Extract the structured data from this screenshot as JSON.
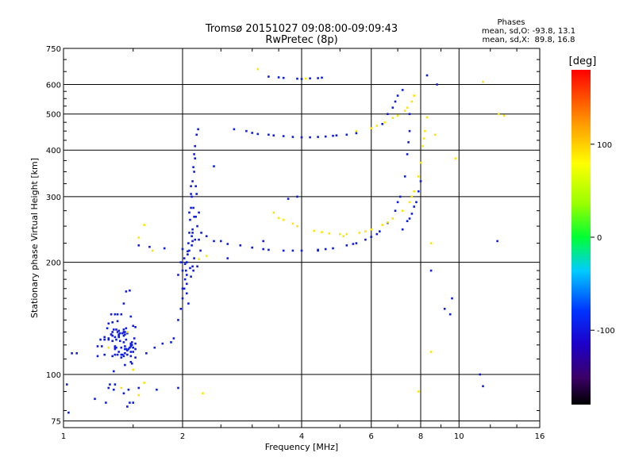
{
  "chart_data": {
    "type": "scatter",
    "title": "Tromsø 20151027 09:08:00-09:09:43",
    "subtitle": "RwPretec (8p)",
    "xlabel": "Frequency [MHz]",
    "ylabel": "Stationary phase Virtual Height [km]",
    "x_scale": "log",
    "y_scale": "log",
    "xlim": [
      1,
      16
    ],
    "ylim": [
      72,
      750
    ],
    "x_ticks": [
      1,
      2,
      4,
      6,
      8,
      10,
      16
    ],
    "y_ticks": [
      75,
      100,
      200,
      300,
      400,
      500,
      600,
      750
    ],
    "grid": true,
    "phase_box": {
      "heading": "Phases",
      "line_o": "mean, sd,O: -93.8, 13.1",
      "line_x": "mean, sd,X:  89.8, 16.8"
    },
    "colorbar": {
      "label": "[deg]",
      "range": [
        -180,
        180
      ],
      "ticks": [
        -100,
        0,
        100
      ],
      "colormap": "rainbow"
    },
    "series": [
      {
        "phase": -95,
        "points": [
          [
            1.2,
            86
          ],
          [
            1.28,
            84
          ],
          [
            1.3,
            92
          ],
          [
            1.22,
            112
          ],
          [
            1.25,
            119
          ],
          [
            1.3,
            124
          ],
          [
            1.3,
            137
          ],
          [
            1.38,
            128
          ],
          [
            1.34,
            132
          ],
          [
            1.27,
            126
          ],
          [
            1.32,
            128
          ],
          [
            1.35,
            126
          ],
          [
            1.37,
            139
          ],
          [
            1.32,
            145
          ],
          [
            1.37,
            145
          ],
          [
            1.4,
            145
          ],
          [
            1.38,
            131
          ],
          [
            1.45,
            129
          ],
          [
            1.35,
            117
          ],
          [
            1.42,
            127
          ],
          [
            1.42,
            122
          ],
          [
            1.42,
            112
          ],
          [
            1.48,
            143
          ],
          [
            1.4,
            118
          ],
          [
            1.48,
            108
          ],
          [
            1.43,
            114
          ],
          [
            1.42,
            155
          ],
          [
            1.44,
            167
          ],
          [
            1.47,
            168
          ],
          [
            1.5,
            118
          ],
          [
            1.38,
            127
          ],
          [
            1.33,
            130
          ],
          [
            1.48,
            115
          ],
          [
            1.44,
            124
          ],
          [
            1.42,
            130
          ],
          [
            1.48,
            121
          ],
          [
            1.48,
            119
          ],
          [
            1.52,
            134
          ],
          [
            1.48,
            120
          ],
          [
            1.47,
            118
          ],
          [
            1.22,
            119
          ],
          [
            1.35,
            113
          ],
          [
            1.45,
            113
          ],
          [
            1.43,
            106
          ],
          [
            1.31,
            94
          ],
          [
            1.34,
            91
          ],
          [
            1.35,
            94
          ],
          [
            1.49,
            120
          ],
          [
            1.33,
            127
          ],
          [
            1.39,
            123
          ],
          [
            1.37,
            130
          ],
          [
            1.48,
            112
          ],
          [
            1.3,
            125
          ],
          [
            1.41,
            113
          ],
          [
            1.52,
            121
          ],
          [
            1.33,
            123
          ],
          [
            1.5,
            118
          ],
          [
            1.34,
            102
          ],
          [
            1.49,
            107
          ],
          [
            1.42,
            132
          ],
          [
            1.4,
            111
          ],
          [
            1.44,
            117
          ],
          [
            1.48,
            121
          ],
          [
            1.46,
            117
          ],
          [
            1.41,
            129
          ],
          [
            1.27,
            124
          ],
          [
            1.24,
            124
          ],
          [
            1.29,
            133
          ],
          [
            1.45,
            82
          ],
          [
            1.5,
            84
          ],
          [
            1.42,
            89
          ],
          [
            1.47,
            84
          ],
          [
            1.46,
            91
          ],
          [
            1.37,
            113
          ],
          [
            1.51,
            125
          ],
          [
            1.27,
            113
          ],
          [
            1.36,
            132
          ],
          [
            1.43,
            119
          ],
          [
            1.38,
            115
          ],
          [
            1.36,
            124
          ],
          [
            1.5,
            115
          ],
          [
            1.38,
            126
          ],
          [
            1.33,
            138
          ],
          [
            1.44,
            133
          ],
          [
            1.49,
            122
          ],
          [
            1.35,
            145
          ],
          [
            1.5,
            135
          ],
          [
            1.45,
            116
          ],
          [
            1.52,
            117
          ],
          [
            1.39,
            129
          ],
          [
            1.32,
            128
          ],
          [
            1.43,
            128
          ],
          [
            1.43,
            130
          ],
          [
            1.35,
            119
          ],
          [
            1.36,
            118
          ],
          [
            1.52,
            111
          ],
          [
            1.4,
            113
          ],
          [
            1.33,
            112
          ],
          [
            1.35,
            118
          ],
          [
            1.43,
            117
          ],
          [
            1.05,
            114
          ],
          [
            1.08,
            114
          ],
          [
            1.02,
            94
          ],
          [
            1.03,
            79
          ],
          [
            1.55,
            92
          ],
          [
            1.72,
            91
          ],
          [
            1.95,
            92
          ],
          [
            1.62,
            114
          ],
          [
            1.7,
            118
          ],
          [
            1.78,
            121
          ],
          [
            1.87,
            122
          ],
          [
            1.9,
            125
          ],
          [
            1.95,
            140
          ],
          [
            1.98,
            150
          ],
          [
            2.0,
            160
          ],
          [
            2.02,
            170
          ],
          [
            2.03,
            180
          ],
          [
            2.04,
            190
          ],
          [
            2.05,
            200
          ],
          [
            2.06,
            210
          ],
          [
            2.07,
            225
          ],
          [
            2.08,
            240
          ],
          [
            2.09,
            260
          ],
          [
            2.1,
            280
          ],
          [
            2.11,
            300
          ],
          [
            2.12,
            330
          ],
          [
            2.13,
            360
          ],
          [
            2.14,
            390
          ],
          [
            2.15,
            410
          ],
          [
            2.17,
            440
          ],
          [
            2.19,
            455
          ],
          [
            2.05,
            175
          ],
          [
            2.08,
            215
          ],
          [
            2.12,
            245
          ],
          [
            2.2,
            230
          ],
          [
            2.22,
            215
          ],
          [
            2.15,
            230
          ],
          [
            2.18,
            195
          ],
          [
            2.02,
            205
          ],
          [
            2.1,
            183
          ],
          [
            2.12,
            195
          ],
          [
            2.05,
            165
          ],
          [
            2.16,
            265
          ],
          [
            2.08,
            272
          ],
          [
            2.0,
            190
          ],
          [
            1.98,
            200
          ],
          [
            2.1,
            305
          ],
          [
            2.14,
            350
          ],
          [
            2.16,
            320
          ],
          [
            2.13,
            280
          ],
          [
            2.12,
            228
          ],
          [
            2.11,
            222
          ],
          [
            2.05,
            185
          ],
          [
            2.09,
            193
          ],
          [
            2.14,
            205
          ],
          [
            2.06,
            214
          ],
          [
            2.12,
            240
          ],
          [
            2.18,
            250
          ],
          [
            2.03,
            198
          ],
          [
            2.2,
            272
          ],
          [
            2.1,
            320
          ],
          [
            2.15,
            380
          ],
          [
            2.0,
            170
          ],
          [
            2.07,
            155
          ],
          [
            1.95,
            185
          ],
          [
            2.23,
            240
          ],
          [
            2.13,
            190
          ],
          [
            2.17,
            305
          ],
          [
            2.14,
            265
          ],
          [
            2.11,
            235
          ],
          [
            1.55,
            222
          ],
          [
            1.65,
            220
          ],
          [
            1.8,
            218
          ],
          [
            2.0,
            217
          ],
          [
            2.3,
            235
          ],
          [
            2.5,
            228
          ],
          [
            2.8,
            222
          ],
          [
            3.0,
            219
          ],
          [
            3.3,
            216
          ],
          [
            3.6,
            215
          ],
          [
            4.0,
            215
          ],
          [
            4.4,
            216
          ],
          [
            4.8,
            218
          ],
          [
            5.2,
            222
          ],
          [
            5.5,
            225
          ],
          [
            5.8,
            230
          ],
          [
            6.0,
            234
          ],
          [
            6.3,
            242
          ],
          [
            6.6,
            255
          ],
          [
            6.9,
            275
          ],
          [
            7.1,
            300
          ],
          [
            7.3,
            340
          ],
          [
            7.4,
            390
          ],
          [
            7.5,
            450
          ],
          [
            7.5,
            500
          ],
          [
            2.4,
            228
          ],
          [
            2.6,
            224
          ],
          [
            3.2,
            217
          ],
          [
            3.8,
            215
          ],
          [
            4.6,
            217
          ],
          [
            5.4,
            224
          ],
          [
            6.2,
            238
          ],
          [
            7.0,
            290
          ],
          [
            7.45,
            420
          ],
          [
            2.7,
            455
          ],
          [
            3.0,
            445
          ],
          [
            3.3,
            440
          ],
          [
            3.6,
            436
          ],
          [
            4.0,
            433
          ],
          [
            4.4,
            434
          ],
          [
            4.8,
            437
          ],
          [
            5.2,
            440
          ],
          [
            5.5,
            444
          ],
          [
            2.9,
            450
          ],
          [
            3.8,
            434
          ],
          [
            4.2,
            433
          ],
          [
            4.6,
            435
          ],
          [
            3.4,
            438
          ],
          [
            4.9,
            438
          ],
          [
            3.1,
            442
          ],
          [
            3.3,
            630
          ],
          [
            3.6,
            625
          ],
          [
            3.9,
            622
          ],
          [
            4.2,
            623
          ],
          [
            4.5,
            626
          ],
          [
            3.5,
            627
          ],
          [
            4.0,
            621
          ],
          [
            4.4,
            624
          ],
          [
            6.4,
            470
          ],
          [
            6.8,
            520
          ],
          [
            7.0,
            560
          ],
          [
            7.2,
            580
          ],
          [
            6.6,
            500
          ],
          [
            6.9,
            540
          ],
          [
            7.2,
            245
          ],
          [
            7.4,
            258
          ],
          [
            7.6,
            270
          ],
          [
            7.8,
            290
          ],
          [
            7.9,
            310
          ],
          [
            8.0,
            330
          ],
          [
            7.5,
            262
          ],
          [
            7.7,
            282
          ],
          [
            11.3,
            100
          ],
          [
            11.5,
            93
          ],
          [
            9.2,
            150
          ],
          [
            9.5,
            145
          ],
          [
            8.3,
            635
          ],
          [
            12.5,
            228
          ],
          [
            9.6,
            160
          ],
          [
            8.5,
            190
          ],
          [
            8.8,
            600
          ],
          [
            2.6,
            205
          ],
          [
            3.2,
            228
          ],
          [
            4.4,
            215
          ],
          [
            3.9,
            300
          ],
          [
            3.7,
            296
          ],
          [
            2.4,
            362
          ]
        ]
      },
      {
        "phase": 90,
        "points": [
          [
            3.4,
            272
          ],
          [
            3.6,
            260
          ],
          [
            3.9,
            250
          ],
          [
            4.3,
            243
          ],
          [
            4.7,
            239
          ],
          [
            5.2,
            238
          ],
          [
            5.6,
            240
          ],
          [
            6.0,
            245
          ],
          [
            6.4,
            252
          ],
          [
            6.8,
            262
          ],
          [
            7.2,
            275
          ],
          [
            7.5,
            290
          ],
          [
            7.7,
            310
          ],
          [
            7.9,
            340
          ],
          [
            8.0,
            370
          ],
          [
            8.1,
            410
          ],
          [
            8.2,
            450
          ],
          [
            8.3,
            490
          ],
          [
            3.8,
            254
          ],
          [
            4.5,
            241
          ],
          [
            5.0,
            238
          ],
          [
            5.8,
            242
          ],
          [
            6.6,
            256
          ],
          [
            7.6,
            300
          ],
          [
            8.15,
            430
          ],
          [
            5.5,
            450
          ],
          [
            6.0,
            458
          ],
          [
            6.5,
            475
          ],
          [
            7.0,
            495
          ],
          [
            7.4,
            520
          ],
          [
            7.7,
            560
          ],
          [
            6.2,
            465
          ],
          [
            6.8,
            488
          ],
          [
            7.3,
            510
          ],
          [
            7.6,
            540
          ],
          [
            1.55,
            233
          ],
          [
            1.6,
            252
          ],
          [
            1.45,
            130
          ],
          [
            1.3,
            118
          ],
          [
            1.5,
            103
          ],
          [
            1.55,
            88
          ],
          [
            1.6,
            95
          ],
          [
            1.4,
            92
          ],
          [
            2.25,
            89
          ],
          [
            3.1,
            660
          ],
          [
            4.1,
            622
          ],
          [
            8.5,
            225
          ],
          [
            8.5,
            115
          ],
          [
            9.8,
            380
          ],
          [
            11.5,
            610
          ],
          [
            12.6,
            500
          ],
          [
            13,
            495
          ],
          [
            7.9,
            90
          ],
          [
            8.7,
            440
          ],
          [
            5.1,
            235
          ],
          [
            3.5,
            263
          ],
          [
            2.2,
            204
          ],
          [
            2.3,
            208
          ],
          [
            1.68,
            215
          ]
        ]
      }
    ]
  }
}
